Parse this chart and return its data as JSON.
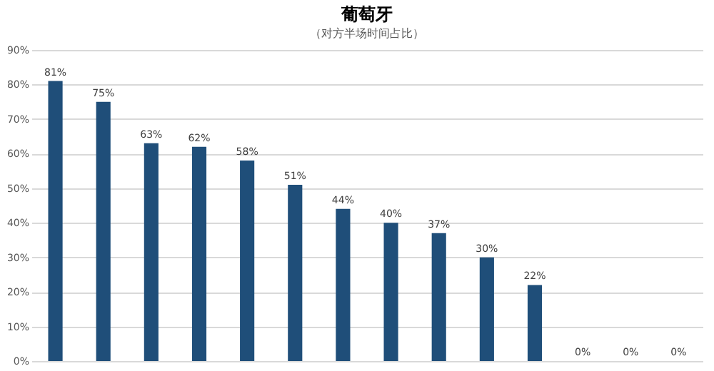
{
  "chart_data": {
    "type": "bar",
    "title": "葡萄牙",
    "subtitle": "（对方半场时间占比）",
    "categories": [
      null,
      null,
      null,
      null,
      null,
      null,
      null,
      null,
      null,
      null,
      null,
      null,
      null,
      null
    ],
    "values": [
      81,
      75,
      63,
      62,
      58,
      51,
      44,
      40,
      37,
      30,
      22,
      0,
      0,
      0
    ],
    "value_labels": [
      "81%",
      "75%",
      "63%",
      "62%",
      "58%",
      "51%",
      "44%",
      "40%",
      "37%",
      "30%",
      "22%",
      "0%",
      "0%",
      "0%"
    ],
    "color": "#1f4e79",
    "ylim": [
      0,
      90
    ],
    "yticks": [
      {
        "value": 0,
        "label": "0%"
      },
      {
        "value": 10,
        "label": "10%"
      },
      {
        "value": 20,
        "label": "20%"
      },
      {
        "value": 30,
        "label": "30%"
      },
      {
        "value": 40,
        "label": "40%"
      },
      {
        "value": 50,
        "label": "50%"
      },
      {
        "value": 60,
        "label": "60%"
      },
      {
        "value": 70,
        "label": "70%"
      },
      {
        "value": 80,
        "label": "80%"
      },
      {
        "value": 90,
        "label": "90%"
      }
    ],
    "grid": "y"
  }
}
